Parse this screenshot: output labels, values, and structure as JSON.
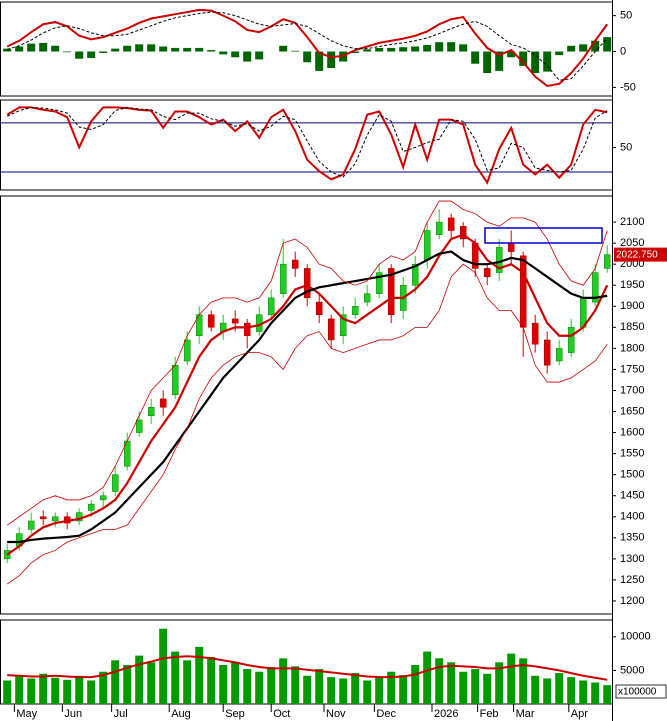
{
  "chart_data": [
    {
      "type": "macd",
      "ylim": [
        -62,
        69
      ],
      "yticks": [
        -50,
        0,
        50
      ],
      "series": [
        {
          "color": "#cc0000",
          "width": 2,
          "dashed": false,
          "values": [
            7,
            15,
            27,
            38,
            41,
            35,
            22,
            17,
            20,
            26,
            32,
            40,
            46,
            49,
            52,
            55,
            58,
            57,
            50,
            42,
            30,
            27,
            35,
            45,
            40,
            20,
            -2,
            -8,
            -6,
            2,
            7,
            12,
            15,
            18,
            22,
            28,
            38,
            45,
            48,
            25,
            5,
            -5,
            2,
            -15,
            -35,
            -48,
            -45,
            -30,
            -10,
            15,
            38
          ]
        },
        {
          "color": "#000000",
          "width": 1,
          "dashed": true,
          "values": [
            3,
            8,
            16,
            26,
            33,
            36,
            32,
            26,
            22,
            22,
            24,
            30,
            36,
            42,
            47,
            50,
            53,
            55,
            54,
            50,
            44,
            38,
            35,
            37,
            39,
            35,
            25,
            15,
            8,
            4,
            4,
            7,
            10,
            12,
            15,
            19,
            25,
            32,
            38,
            42,
            35,
            22,
            10,
            5,
            -5,
            -20,
            -40,
            -38,
            -20,
            0,
            18
          ]
        }
      ],
      "histogram": {
        "color": "#006400",
        "values": [
          4,
          7,
          11,
          12,
          8,
          -1,
          -10,
          -9,
          -2,
          4,
          8,
          10,
          10,
          7,
          5,
          5,
          5,
          2,
          -4,
          -8,
          -14,
          -11,
          0,
          8,
          1,
          -15,
          -27,
          -23,
          -14,
          -2,
          3,
          5,
          5,
          6,
          7,
          9,
          13,
          13,
          10,
          -17,
          -30,
          -27,
          -8,
          -20,
          -30,
          -28,
          -5,
          8,
          10,
          15,
          20
        ]
      }
    },
    {
      "type": "oscillator",
      "ylim": [
        -2,
        108
      ],
      "yticks": [
        50
      ],
      "levels": [
        20,
        80
      ],
      "level_color": "#000080",
      "series": [
        {
          "color": "#cc0000",
          "width": 2,
          "dashed": false,
          "values": [
            90,
            99,
            99,
            96,
            94,
            87,
            50,
            82,
            99,
            99,
            98,
            96,
            95,
            74,
            94,
            94,
            87,
            78,
            84,
            70,
            82,
            62,
            87,
            96,
            70,
            35,
            21,
            11,
            17,
            48,
            90,
            94,
            66,
            26,
            78,
            35,
            84,
            84,
            78,
            29,
            7,
            48,
            74,
            29,
            17,
            29,
            13,
            29,
            78,
            96,
            93
          ]
        },
        {
          "color": "#000000",
          "width": 1,
          "dashed": true,
          "values": [
            88,
            95,
            99,
            98,
            96,
            92,
            75,
            72,
            78,
            95,
            99,
            97,
            96,
            88,
            84,
            92,
            92,
            85,
            82,
            76,
            79,
            70,
            76,
            88,
            84,
            58,
            33,
            20,
            14,
            30,
            65,
            90,
            82,
            45,
            50,
            56,
            60,
            84,
            82,
            60,
            22,
            25,
            55,
            50,
            25,
            22,
            20,
            22,
            48,
            86,
            95
          ]
        }
      ]
    },
    {
      "type": "candlestick",
      "x": [
        0,
        5,
        10,
        15,
        20,
        25,
        30,
        35,
        40,
        45,
        50,
        55,
        60,
        65,
        70,
        75,
        80,
        85,
        90,
        95,
        100,
        105,
        110,
        115,
        120,
        125,
        130,
        135,
        140,
        145,
        150,
        155,
        160,
        165,
        170,
        175,
        180,
        185,
        190,
        195,
        200,
        205,
        210,
        215,
        220,
        225,
        230,
        235,
        240,
        245,
        250
      ],
      "xlim": [
        -3,
        252
      ],
      "ylim": [
        1169,
        2162
      ],
      "yticks": [
        1200,
        1250,
        1300,
        1350,
        1400,
        1450,
        1500,
        1550,
        1600,
        1650,
        1700,
        1750,
        1800,
        1850,
        1900,
        1950,
        2000,
        2050,
        2100
      ],
      "up_color": "#22cc22",
      "down_color": "#dd0000",
      "open": [
        1300,
        1330,
        1370,
        1400,
        1390,
        1400,
        1390,
        1415,
        1440,
        1460,
        1520,
        1600,
        1640,
        1680,
        1690,
        1770,
        1830,
        1880,
        1840,
        1870,
        1860,
        1840,
        1880,
        1930,
        2010,
        1990,
        1910,
        1870,
        1830,
        1880,
        1910,
        1930,
        1990,
        1890,
        1950,
        2010,
        2070,
        2110,
        2090,
        2050,
        1990,
        1980,
        2050,
        2020,
        1860,
        1820,
        1770,
        1790,
        1850,
        1910,
        1990
      ],
      "high": [
        1335,
        1375,
        1410,
        1415,
        1410,
        1410,
        1420,
        1440,
        1460,
        1520,
        1600,
        1650,
        1680,
        1700,
        1780,
        1840,
        1900,
        1890,
        1880,
        1890,
        1870,
        1900,
        1940,
        2060,
        2030,
        2000,
        1930,
        1880,
        1900,
        1920,
        1950,
        2000,
        2000,
        1970,
        2020,
        2100,
        2130,
        2120,
        2100,
        2060,
        2000,
        2060,
        2080,
        2030,
        1880,
        1840,
        1820,
        1870,
        1940,
        2000,
        2045
      ],
      "low": [
        1290,
        1320,
        1360,
        1380,
        1375,
        1370,
        1380,
        1400,
        1420,
        1450,
        1510,
        1590,
        1620,
        1640,
        1680,
        1760,
        1810,
        1840,
        1820,
        1840,
        1800,
        1830,
        1870,
        1920,
        1970,
        1900,
        1860,
        1800,
        1810,
        1870,
        1900,
        1920,
        1860,
        1870,
        1930,
        1990,
        2060,
        2060,
        2040,
        1970,
        1950,
        1960,
        2000,
        1780,
        1790,
        1740,
        1760,
        1780,
        1840,
        1900,
        1980
      ],
      "close": [
        1320,
        1360,
        1390,
        1395,
        1400,
        1385,
        1410,
        1430,
        1450,
        1500,
        1580,
        1630,
        1660,
        1660,
        1760,
        1820,
        1880,
        1850,
        1860,
        1860,
        1830,
        1880,
        1920,
        2000,
        1990,
        1920,
        1880,
        1820,
        1880,
        1900,
        1930,
        1980,
        1880,
        1950,
        2000,
        2080,
        2100,
        2080,
        2060,
        1990,
        1970,
        2040,
        2030,
        1850,
        1810,
        1760,
        1800,
        1850,
        1920,
        1980,
        2022.75
      ],
      "series": [
        {
          "color": "#cc0000",
          "width": 2.2,
          "dashed": false,
          "values": [
            1310,
            1330,
            1355,
            1375,
            1385,
            1390,
            1395,
            1405,
            1420,
            1440,
            1480,
            1530,
            1580,
            1620,
            1660,
            1720,
            1780,
            1820,
            1840,
            1850,
            1850,
            1855,
            1870,
            1900,
            1940,
            1950,
            1930,
            1900,
            1870,
            1860,
            1880,
            1900,
            1920,
            1920,
            1940,
            1970,
            2020,
            2060,
            2070,
            2050,
            2010,
            1990,
            2000,
            1980,
            1920,
            1860,
            1830,
            1830,
            1850,
            1890,
            1950
          ]
        },
        {
          "color": "#000000",
          "width": 2.2,
          "dashed": false,
          "values": [
            1340,
            1340,
            1345,
            1348,
            1350,
            1352,
            1355,
            1370,
            1390,
            1410,
            1440,
            1470,
            1500,
            1530,
            1570,
            1610,
            1650,
            1690,
            1730,
            1760,
            1790,
            1820,
            1860,
            1890,
            1920,
            1935,
            1945,
            1950,
            1955,
            1960,
            1965,
            1970,
            1975,
            1985,
            1995,
            2010,
            2025,
            2030,
            2010,
            2000,
            2000,
            2005,
            2015,
            2010,
            1990,
            1970,
            1950,
            1930,
            1920,
            1920,
            1925
          ]
        },
        {
          "color": "#cc0000",
          "width": 0.8,
          "dashed": false,
          "values": [
            1380,
            1400,
            1420,
            1440,
            1450,
            1440,
            1440,
            1450,
            1470,
            1520,
            1580,
            1640,
            1700,
            1730,
            1760,
            1830,
            1880,
            1910,
            1920,
            1920,
            1910,
            1920,
            1960,
            2050,
            2060,
            2040,
            2000,
            1990,
            1960,
            1950,
            1960,
            2000,
            2020,
            2010,
            2030,
            2100,
            2150,
            2150,
            2130,
            2120,
            2100,
            2090,
            2110,
            2110,
            2100,
            2060,
            2000,
            1960,
            1950,
            1990,
            2080
          ]
        },
        {
          "color": "#cc0000",
          "width": 0.8,
          "dashed": false,
          "values": [
            1240,
            1260,
            1290,
            1310,
            1320,
            1340,
            1350,
            1360,
            1370,
            1370,
            1380,
            1420,
            1460,
            1500,
            1560,
            1610,
            1680,
            1730,
            1760,
            1780,
            1790,
            1790,
            1780,
            1750,
            1800,
            1830,
            1840,
            1800,
            1790,
            1800,
            1810,
            1820,
            1820,
            1830,
            1850,
            1850,
            1890,
            1970,
            2000,
            1980,
            1920,
            1890,
            1890,
            1850,
            1760,
            1720,
            1720,
            1730,
            1750,
            1770,
            1810
          ]
        }
      ],
      "last_label": {
        "value": 2022.75,
        "label": "2022.750"
      }
    },
    {
      "type": "volume",
      "ylim": [
        0,
        12500
      ],
      "yticks": [
        5000,
        10000
      ],
      "unit_label": "x100000",
      "color": "#009900",
      "values": [
        3500,
        4200,
        3800,
        4500,
        3900,
        3600,
        4200,
        3500,
        4800,
        6500,
        5800,
        7200,
        6200,
        11200,
        7800,
        6500,
        8500,
        7000,
        5800,
        6200,
        5200,
        4800,
        5500,
        6800,
        5600,
        4200,
        5200,
        4000,
        3800,
        4600,
        3500,
        3900,
        4800,
        4300,
        5800,
        7800,
        6800,
        6200,
        4800,
        5200,
        4500,
        6200,
        7500,
        6800,
        4200,
        3800,
        4600,
        4000,
        3500,
        3200,
        2800
      ],
      "series": [
        {
          "color": "#cc0000",
          "width": 2,
          "dashed": false,
          "values": [
            4300,
            4200,
            4100,
            4100,
            4200,
            4100,
            4000,
            4000,
            4300,
            4800,
            5400,
            5900,
            6300,
            6800,
            7000,
            7100,
            7000,
            6800,
            6500,
            6200,
            5800,
            5500,
            5300,
            5300,
            5300,
            5100,
            4900,
            4700,
            4500,
            4300,
            4100,
            4000,
            4000,
            4100,
            4400,
            5000,
            5500,
            5700,
            5600,
            5500,
            5300,
            5300,
            5600,
            5800,
            5600,
            5300,
            5000,
            4600,
            4200,
            3900,
            3600
          ]
        }
      ],
      "xticks": [
        {
          "value": 3,
          "label": "May"
        },
        {
          "value": 23,
          "label": "Jun"
        },
        {
          "value": 43.5,
          "label": "Jul"
        },
        {
          "value": 67.5,
          "label": "Aug"
        },
        {
          "value": 90,
          "label": "Sep"
        },
        {
          "value": 110,
          "label": "Oct"
        },
        {
          "value": 132,
          "label": "Nov"
        },
        {
          "value": 153,
          "label": "Dec"
        },
        {
          "value": 177,
          "label": "2026"
        },
        {
          "value": 196,
          "label": "Feb"
        },
        {
          "value": 211,
          "label": "Mar"
        },
        {
          "value": 234,
          "label": "Apr"
        }
      ]
    }
  ]
}
